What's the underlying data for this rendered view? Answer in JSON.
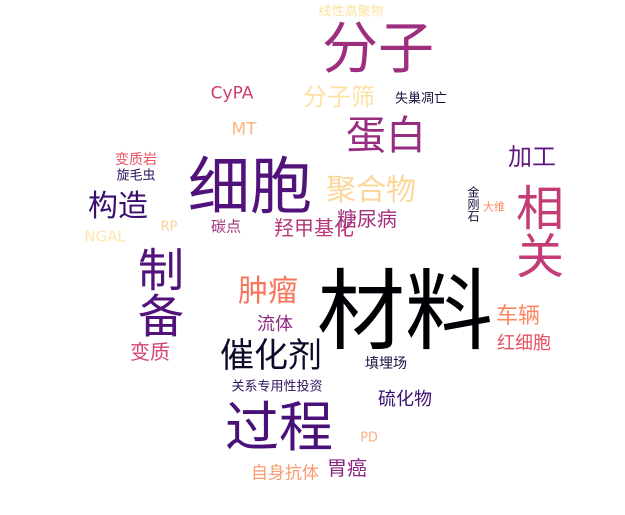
{
  "words": [
    {
      "text": "材料",
      "color": "#000004",
      "orientation": "horizontal"
    },
    {
      "text": "细胞",
      "color": "#51127c",
      "orientation": "horizontal"
    },
    {
      "text": "分子",
      "color": "#9e2f7f",
      "orientation": "horizontal"
    },
    {
      "text": "相关",
      "color": "#c43c75",
      "orientation": "vertical"
    },
    {
      "text": "过程",
      "color": "#4a1079",
      "orientation": "horizontal"
    },
    {
      "text": "制备",
      "color": "#51127c",
      "orientation": "vertical"
    },
    {
      "text": "蛋白",
      "color": "#982d80",
      "orientation": "horizontal"
    },
    {
      "text": "催化剂",
      "color": "#0d0a29",
      "orientation": "horizontal"
    },
    {
      "text": "聚合物",
      "color": "#fcd79a",
      "orientation": "horizontal"
    },
    {
      "text": "构造",
      "color": "#3b0f70",
      "orientation": "horizontal"
    },
    {
      "text": "肿瘤",
      "color": "#f8765c",
      "orientation": "horizontal"
    },
    {
      "text": "加工",
      "color": "#5f187f",
      "orientation": "horizontal"
    },
    {
      "text": "羟甲基化",
      "color": "#b73779",
      "orientation": "horizontal"
    },
    {
      "text": "糖尿病",
      "color": "#a3307e",
      "orientation": "horizontal"
    },
    {
      "text": "分子筛",
      "color": "#fde2a3",
      "orientation": "horizontal"
    },
    {
      "text": "车辆",
      "color": "#fb8861",
      "orientation": "horizontal"
    },
    {
      "text": "红细胞",
      "color": "#e75263",
      "orientation": "horizontal"
    },
    {
      "text": "变质",
      "color": "#d3436e",
      "orientation": "horizontal"
    },
    {
      "text": "流体",
      "color": "#8c2981",
      "orientation": "horizontal"
    },
    {
      "text": "硫化物",
      "color": "#3b0f70",
      "orientation": "horizontal"
    },
    {
      "text": "胃癌",
      "color": "#8c2981",
      "orientation": "horizontal"
    },
    {
      "text": "自身抗体",
      "color": "#fc9b6c",
      "orientation": "horizontal"
    },
    {
      "text": "CyPA",
      "color": "#cb4071",
      "orientation": "horizontal"
    },
    {
      "text": "MT",
      "color": "#feb47b",
      "orientation": "horizontal"
    },
    {
      "text": "碳点",
      "color": "#a3307e",
      "orientation": "horizontal"
    },
    {
      "text": "填埋场",
      "color": "#1b1042",
      "orientation": "horizontal"
    },
    {
      "text": "关系专用性投资",
      "color": "#2c115f",
      "orientation": "horizontal"
    },
    {
      "text": "变质岩",
      "color": "#e75263",
      "orientation": "horizontal"
    },
    {
      "text": "旋毛虫",
      "color": "#2c115f",
      "orientation": "horizontal"
    },
    {
      "text": "NGAL",
      "color": "#fde7aa",
      "orientation": "horizontal"
    },
    {
      "text": "RP",
      "color": "#fed395",
      "orientation": "horizontal"
    },
    {
      "text": "金刚石",
      "color": "#150e37",
      "orientation": "vertical"
    },
    {
      "text": "大维",
      "color": "#fb8861",
      "orientation": "horizontal"
    },
    {
      "text": "失巢凋亡",
      "color": "#1b1042",
      "orientation": "horizontal"
    },
    {
      "text": "线性高聚物",
      "color": "#fde2a3",
      "orientation": "horizontal"
    },
    {
      "text": "PD",
      "color": "#fcb07e",
      "orientation": "horizontal"
    }
  ]
}
